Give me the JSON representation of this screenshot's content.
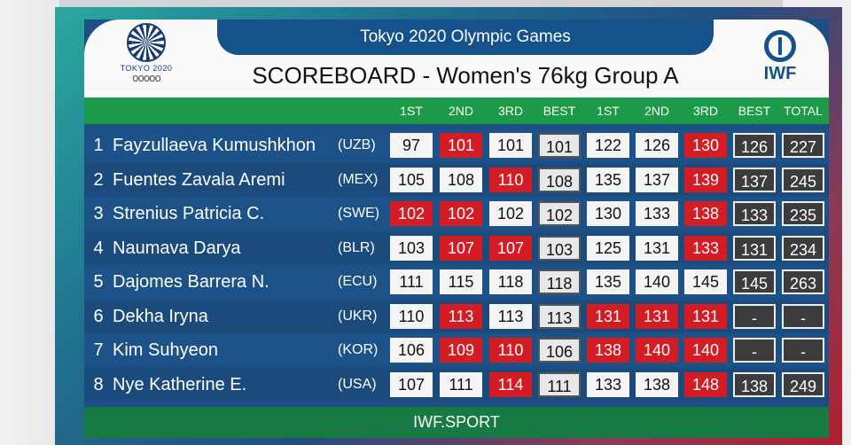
{
  "header": {
    "subtitle": "Tokyo 2020 Olympic Games",
    "title": "SCOREBOARD - Women's 76kg Group A",
    "logo_left_text": "TOKYO 2020",
    "logo_left_rings": "ooooo",
    "logo_right_text": "IWF"
  },
  "columns": [
    "1ST",
    "2ND",
    "3RD",
    "BEST",
    "1ST",
    "2ND",
    "3RD",
    "BEST",
    "TOTAL"
  ],
  "rows": [
    {
      "rank": "1",
      "name": "Fayzullaeva Kumushkhon",
      "nation": "(UZB)",
      "snatch": [
        {
          "v": "97",
          "s": "good"
        },
        {
          "v": "101",
          "s": "fail"
        },
        {
          "v": "101",
          "s": "good"
        }
      ],
      "snatch_best": "101",
      "cj": [
        {
          "v": "122",
          "s": "good"
        },
        {
          "v": "126",
          "s": "good"
        },
        {
          "v": "130",
          "s": "fail"
        }
      ],
      "cj_best": "126",
      "total": "227"
    },
    {
      "rank": "2",
      "name": "Fuentes Zavala Aremi",
      "nation": "(MEX)",
      "snatch": [
        {
          "v": "105",
          "s": "good"
        },
        {
          "v": "108",
          "s": "good"
        },
        {
          "v": "110",
          "s": "fail"
        }
      ],
      "snatch_best": "108",
      "cj": [
        {
          "v": "135",
          "s": "good"
        },
        {
          "v": "137",
          "s": "good"
        },
        {
          "v": "139",
          "s": "fail"
        }
      ],
      "cj_best": "137",
      "total": "245"
    },
    {
      "rank": "3",
      "name": "Strenius Patricia C.",
      "nation": "(SWE)",
      "snatch": [
        {
          "v": "102",
          "s": "fail"
        },
        {
          "v": "102",
          "s": "fail"
        },
        {
          "v": "102",
          "s": "good"
        }
      ],
      "snatch_best": "102",
      "cj": [
        {
          "v": "130",
          "s": "good"
        },
        {
          "v": "133",
          "s": "good"
        },
        {
          "v": "138",
          "s": "fail"
        }
      ],
      "cj_best": "133",
      "total": "235"
    },
    {
      "rank": "4",
      "name": "Naumava Darya",
      "nation": "(BLR)",
      "snatch": [
        {
          "v": "103",
          "s": "good"
        },
        {
          "v": "107",
          "s": "fail"
        },
        {
          "v": "107",
          "s": "fail"
        }
      ],
      "snatch_best": "103",
      "cj": [
        {
          "v": "125",
          "s": "good"
        },
        {
          "v": "131",
          "s": "good"
        },
        {
          "v": "133",
          "s": "fail"
        }
      ],
      "cj_best": "131",
      "total": "234"
    },
    {
      "rank": "5",
      "name": "Dajomes Barrera N.",
      "nation": "(ECU)",
      "snatch": [
        {
          "v": "111",
          "s": "good"
        },
        {
          "v": "115",
          "s": "good"
        },
        {
          "v": "118",
          "s": "good"
        }
      ],
      "snatch_best": "118",
      "cj": [
        {
          "v": "135",
          "s": "good"
        },
        {
          "v": "140",
          "s": "good"
        },
        {
          "v": "145",
          "s": "good"
        }
      ],
      "cj_best": "145",
      "total": "263"
    },
    {
      "rank": "6",
      "name": "Dekha Iryna",
      "nation": "(UKR)",
      "snatch": [
        {
          "v": "110",
          "s": "good"
        },
        {
          "v": "113",
          "s": "fail"
        },
        {
          "v": "113",
          "s": "good"
        }
      ],
      "snatch_best": "113",
      "cj": [
        {
          "v": "131",
          "s": "fail"
        },
        {
          "v": "131",
          "s": "fail"
        },
        {
          "v": "131",
          "s": "fail"
        }
      ],
      "cj_best": "-",
      "total": "-"
    },
    {
      "rank": "7",
      "name": "Kim Suhyeon",
      "nation": "(KOR)",
      "snatch": [
        {
          "v": "106",
          "s": "good"
        },
        {
          "v": "109",
          "s": "fail"
        },
        {
          "v": "110",
          "s": "fail"
        }
      ],
      "snatch_best": "106",
      "cj": [
        {
          "v": "138",
          "s": "fail"
        },
        {
          "v": "140",
          "s": "fail"
        },
        {
          "v": "140",
          "s": "fail"
        }
      ],
      "cj_best": "-",
      "total": "-"
    },
    {
      "rank": "8",
      "name": "Nye Katherine E.",
      "nation": "(USA)",
      "snatch": [
        {
          "v": "107",
          "s": "good"
        },
        {
          "v": "111",
          "s": "good"
        },
        {
          "v": "114",
          "s": "fail"
        }
      ],
      "snatch_best": "111",
      "cj": [
        {
          "v": "133",
          "s": "good"
        },
        {
          "v": "138",
          "s": "good"
        },
        {
          "v": "148",
          "s": "fail"
        }
      ],
      "cj_best": "138",
      "total": "249"
    }
  ],
  "footer": "IWF.SPORT",
  "colors": {
    "good": "#f4f4f4",
    "fail": "#d41c24",
    "header_green": "#1c9a47",
    "board_blue": "#1c5288"
  }
}
